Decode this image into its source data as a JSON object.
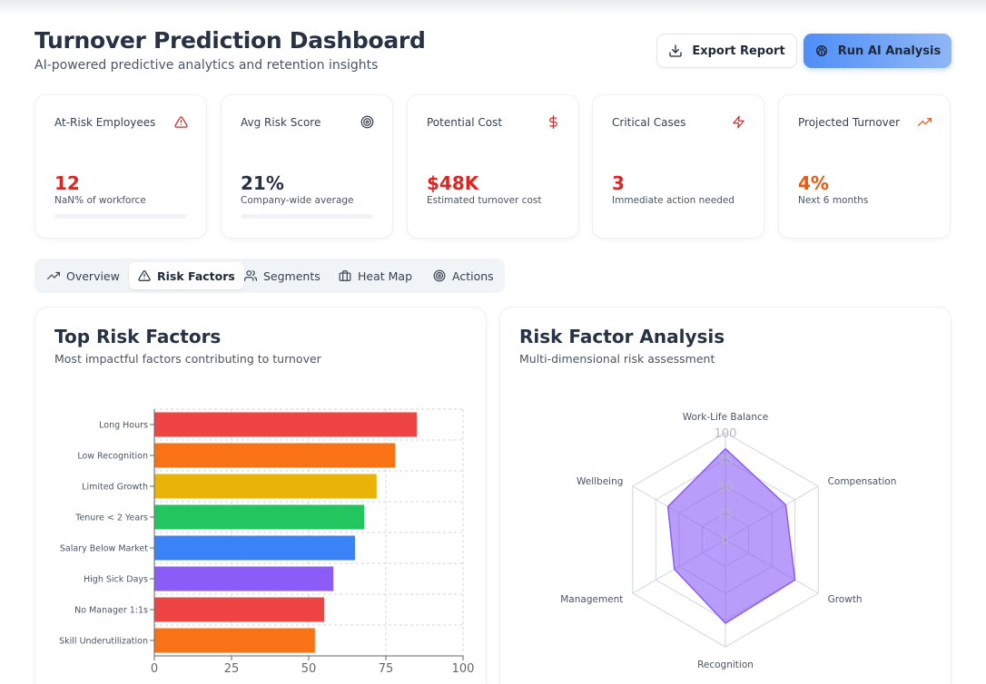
{
  "header": {
    "title": "Turnover Prediction Dashboard",
    "subtitle": "AI-powered predictive analytics and retention insights",
    "export_label": "Export Report",
    "run_label": "Run AI Analysis"
  },
  "kpis": [
    {
      "label": "At-Risk Employees",
      "value": "12",
      "sub": "NaN% of workforce",
      "icon": "alert-triangle-icon",
      "color": "#dc2626"
    },
    {
      "label": "Avg Risk Score",
      "value": "21%",
      "sub": "Company-wide average",
      "icon": "target-icon",
      "color": "#273244"
    },
    {
      "label": "Potential Cost",
      "value": "$48K",
      "sub": "Estimated turnover cost",
      "icon": "dollar-icon",
      "color": "#dc2626"
    },
    {
      "label": "Critical Cases",
      "value": "3",
      "sub": "Immediate action needed",
      "icon": "lightning-icon",
      "color": "#dc2626"
    },
    {
      "label": "Projected Turnover",
      "value": "4%",
      "sub": "Next 6 months",
      "icon": "trending-up-icon",
      "color": "#ea580c"
    }
  ],
  "tabs": [
    {
      "label": "Overview",
      "icon": "trending-up-icon",
      "active": false
    },
    {
      "label": "Risk Factors",
      "icon": "alert-triangle-icon",
      "active": true
    },
    {
      "label": "Segments",
      "icon": "users-icon",
      "active": false
    },
    {
      "label": "Heat Map",
      "icon": "building-icon",
      "active": false
    },
    {
      "label": "Actions",
      "icon": "target-icon",
      "active": false
    }
  ],
  "bar_card": {
    "title": "Top Risk Factors",
    "subtitle": "Most impactful factors contributing to turnover"
  },
  "radar_card": {
    "title": "Risk Factor Analysis",
    "subtitle": "Multi-dimensional risk assessment"
  },
  "chart_data": [
    {
      "type": "bar",
      "orientation": "horizontal",
      "categories": [
        "Long Hours",
        "Low Recognition",
        "Limited Growth",
        "Tenure < 2 Years",
        "Salary Below Market",
        "High Sick Days",
        "No Manager 1:1s",
        "Skill Underutilization"
      ],
      "values": [
        85,
        78,
        72,
        68,
        65,
        58,
        55,
        52
      ],
      "colors": [
        "#ef4444",
        "#f97316",
        "#eab308",
        "#22c55e",
        "#3b82f6",
        "#8b5cf6",
        "#ef4444",
        "#f97316"
      ],
      "xlim": [
        0,
        100
      ],
      "xticks": [
        0,
        25,
        50,
        75,
        100
      ],
      "grid": true
    },
    {
      "type": "radar",
      "axes": [
        "Work-Life Balance",
        "Compensation",
        "Growth",
        "Recognition",
        "Management",
        "Wellbeing"
      ],
      "values": [
        85,
        65,
        75,
        78,
        55,
        62
      ],
      "rlim": [
        0,
        100
      ],
      "rticks": [
        0,
        25,
        50,
        75,
        100
      ],
      "fill_color": "#8b5cf6"
    }
  ]
}
